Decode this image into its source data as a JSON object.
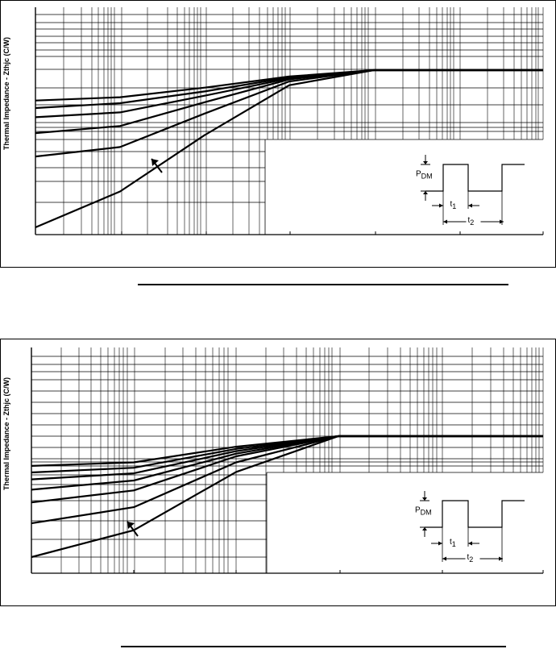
{
  "charts": [
    {
      "id": "chart1",
      "ylabel": "Thermal Impedance - Zthjc (C/W)",
      "inset": {
        "pdm_main": "P",
        "pdm_sub": "DM",
        "t1_main": "t",
        "t1_sub": "1",
        "t2_main": "t",
        "t2_sub": "2"
      }
    },
    {
      "id": "chart2",
      "ylabel": "Thermal Impedance - Zthjc (C/W)",
      "inset": {
        "pdm_main": "P",
        "pdm_sub": "DM",
        "t1_main": "t",
        "t1_sub": "1",
        "t2_main": "t",
        "t2_sub": "2"
      }
    }
  ],
  "chart_data": [
    {
      "type": "line",
      "title": "",
      "xlabel": "",
      "ylabel": "Thermal Impedance - Zthjc (C/W)",
      "x_scale": "log",
      "y_scale": "log",
      "x_decades": 6,
      "y_decades": 3,
      "grid": true,
      "series": [
        {
          "x": [
            1e-06,
            1e-05,
            0.0001,
            0.001,
            0.01,
            0.1,
            1
          ],
          "y": [
            0.46,
            0.5,
            0.64,
            0.85,
            1.0,
            1.0,
            1.0
          ]
        },
        {
          "x": [
            1e-06,
            1e-05,
            0.0001,
            0.001,
            0.01,
            0.1,
            1
          ],
          "y": [
            0.38,
            0.43,
            0.58,
            0.83,
            1.0,
            1.0,
            1.0
          ]
        },
        {
          "x": [
            1e-06,
            1e-05,
            0.0001,
            0.001,
            0.01,
            0.1,
            1
          ],
          "y": [
            0.3,
            0.34,
            0.52,
            0.81,
            1.0,
            1.0,
            1.0
          ]
        },
        {
          "x": [
            1e-06,
            1e-05,
            0.0001,
            0.001,
            0.01,
            0.1,
            1
          ],
          "y": [
            0.2,
            0.24,
            0.44,
            0.79,
            1.0,
            1.0,
            1.0
          ]
        },
        {
          "x": [
            1e-06,
            1e-05,
            0.0001,
            0.001,
            0.01,
            0.1,
            1
          ],
          "y": [
            0.11,
            0.14,
            0.33,
            0.75,
            1.0,
            1.0,
            1.0
          ]
        },
        {
          "x": [
            1e-06,
            1e-05,
            0.0001,
            0.001,
            0.01,
            0.1,
            1
          ],
          "y": [
            0.018,
            0.045,
            0.19,
            0.68,
            1.0,
            1.0,
            1.0
          ]
        }
      ]
    },
    {
      "type": "line",
      "title": "",
      "xlabel": "",
      "ylabel": "Thermal Impedance - Zthjc (C/W)",
      "x_scale": "log",
      "y_scale": "log",
      "x_decades": 5,
      "y_decades": 3,
      "grid": true,
      "series": [
        {
          "x": [
            1e-05,
            0.0001,
            0.001,
            0.01,
            0.1,
            1
          ],
          "y": [
            0.09,
            0.1,
            0.16,
            0.22,
            0.22,
            0.22
          ]
        },
        {
          "x": [
            1e-05,
            0.0001,
            0.001,
            0.01,
            0.1,
            1
          ],
          "y": [
            0.074,
            0.085,
            0.15,
            0.22,
            0.22,
            0.22
          ]
        },
        {
          "x": [
            1e-05,
            0.0001,
            0.001,
            0.01,
            0.1,
            1
          ],
          "y": [
            0.06,
            0.072,
            0.14,
            0.22,
            0.22,
            0.22
          ]
        },
        {
          "x": [
            1e-05,
            0.0001,
            0.001,
            0.01,
            0.1,
            1
          ],
          "y": [
            0.044,
            0.058,
            0.13,
            0.22,
            0.22,
            0.22
          ]
        },
        {
          "x": [
            1e-05,
            0.0001,
            0.001,
            0.01,
            0.1,
            1
          ],
          "y": [
            0.03,
            0.043,
            0.12,
            0.22,
            0.22,
            0.22
          ]
        },
        {
          "x": [
            1e-05,
            0.0001,
            0.001,
            0.01,
            0.1,
            1
          ],
          "y": [
            0.016,
            0.026,
            0.1,
            0.22,
            0.22,
            0.22
          ]
        },
        {
          "x": [
            1e-05,
            0.0001,
            0.001,
            0.01,
            0.1,
            1
          ],
          "y": [
            0.0058,
            0.013,
            0.075,
            0.22,
            0.22,
            0.22
          ]
        }
      ]
    }
  ]
}
